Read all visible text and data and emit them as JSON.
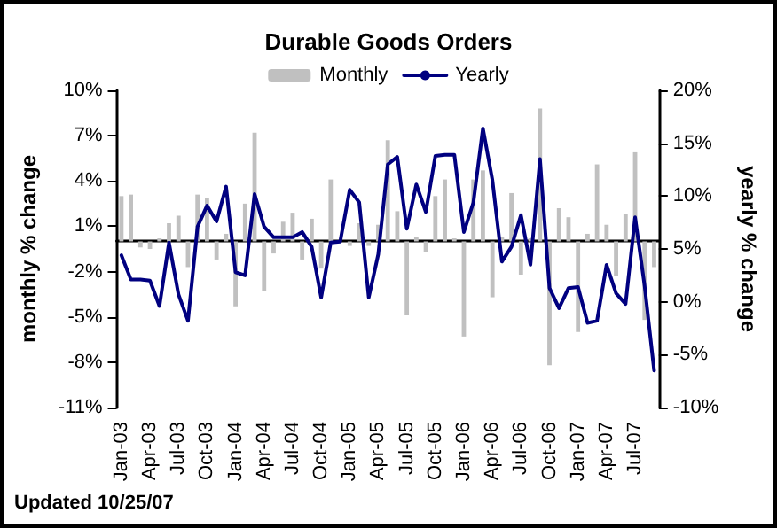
{
  "chart_data": {
    "type": "bar",
    "title": "Durable Goods Orders",
    "categories": [
      "Jan-03",
      null,
      null,
      "Apr-03",
      null,
      null,
      "Jul-03",
      null,
      null,
      "Oct-03",
      null,
      null,
      "Jan-04",
      null,
      null,
      "Apr-04",
      null,
      null,
      "Jul-04",
      null,
      null,
      "Oct-04",
      null,
      null,
      "Jan-05",
      null,
      null,
      "Apr-05",
      null,
      null,
      "Jul-05",
      null,
      null,
      "Oct-05",
      null,
      null,
      "Jan-06",
      null,
      null,
      "Apr-06",
      null,
      null,
      "Jul-06",
      null,
      null,
      "Oct-06",
      null,
      null,
      "Jan-07",
      null,
      null,
      "Apr-07",
      null,
      null,
      "Jul-07",
      null,
      null
    ],
    "series": [
      {
        "name": "Monthly",
        "color": "#c0c0c0",
        "values": [
          3.0,
          3.1,
          -0.4,
          -0.5,
          0.2,
          1.2,
          1.7,
          -1.7,
          3.1,
          2.9,
          -1.2,
          0.5,
          -4.3,
          2.5,
          7.2,
          -3.3,
          -0.8,
          1.3,
          1.9,
          -1.2,
          1.5,
          -1.8,
          4.1,
          null,
          -0.3,
          1.2,
          -0.3,
          1.1,
          6.7,
          2.0,
          -4.9,
          0.3,
          -0.7,
          3.0,
          4.1,
          0.2,
          -6.3,
          4.1,
          4.7,
          -3.7,
          0.3,
          3.2,
          -2.2,
          0.2,
          8.8,
          -8.2,
          2.2,
          1.6,
          -6.0,
          0.5,
          5.1,
          1.1,
          -2.3,
          1.8,
          5.9,
          -5.2,
          -1.7
        ]
      },
      {
        "name": "Yearly",
        "type": "line",
        "axis": "y2",
        "color": "#000080",
        "values": [
          4.4,
          2.1,
          2.1,
          2.0,
          -0.4,
          5.6,
          0.7,
          -1.8,
          7.1,
          9.1,
          7.6,
          10.9,
          2.8,
          2.5,
          10.2,
          7.1,
          6.1,
          6.1,
          6.1,
          6.6,
          5.2,
          0.4,
          5.6,
          5.7,
          10.6,
          9.4,
          0.4,
          4.5,
          13.0,
          13.7,
          6.9,
          11.1,
          8.5,
          13.8,
          13.9,
          13.9,
          6.6,
          9.4,
          16.4,
          11.5,
          3.8,
          5.2,
          8.2,
          3.5,
          13.5,
          1.3,
          -0.6,
          1.3,
          1.4,
          -2.0,
          -1.8,
          3.5,
          0.8,
          -0.2,
          8.0,
          1.5,
          -6.5
        ]
      }
    ],
    "ylabel": "monthly % change",
    "y2label": "yearly % change",
    "ylim": [
      -11,
      10
    ],
    "yticks": [
      {
        "value": -11,
        "label": "-11%"
      },
      {
        "value": -8,
        "label": "-8%"
      },
      {
        "value": -5,
        "label": "-5%"
      },
      {
        "value": -2,
        "label": "-2%"
      },
      {
        "value": 1,
        "label": "1%"
      },
      {
        "value": 4,
        "label": "4%"
      },
      {
        "value": 7,
        "label": "7%"
      },
      {
        "value": 10,
        "label": "10%"
      }
    ],
    "y2lim": [
      -10,
      20
    ],
    "y2ticks": [
      {
        "value": -10,
        "label": "-10%"
      },
      {
        "value": -5,
        "label": "-5%"
      },
      {
        "value": 0,
        "label": "0%"
      },
      {
        "value": 5,
        "label": "5%"
      },
      {
        "value": 10,
        "label": "10%"
      },
      {
        "value": 15,
        "label": "15%"
      },
      {
        "value": 20,
        "label": "20%"
      }
    ],
    "legend": "top",
    "grid": false,
    "marker": "none",
    "line_style": "solid",
    "annotations": [
      "Updated 10/25/07"
    ]
  }
}
